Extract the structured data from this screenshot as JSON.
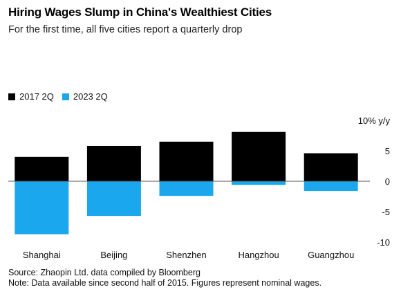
{
  "title": "Hiring Wages Slump in China's Wealthiest Cities",
  "subtitle": "For the first time, all five cities report a quarterly drop",
  "source": "Source: Zhaopin Ltd. data compiled by Bloomberg",
  "note": "Note: Data available since second half of 2015. Figures represent nominal wages.",
  "chart_data": {
    "type": "bar",
    "categories": [
      "Shanghai",
      "Beijing",
      "Shenzhen",
      "Hangzhou",
      "Guangzhou"
    ],
    "series": [
      {
        "name": "2017 2Q",
        "color": "#000000",
        "values": [
          4.0,
          5.8,
          6.5,
          8.1,
          4.6
        ]
      },
      {
        "name": "2023 2Q",
        "color": "#1aa7ee",
        "values": [
          -8.7,
          -5.7,
          -2.4,
          -0.6,
          -1.6
        ]
      }
    ],
    "ylim": [
      -10,
      10
    ],
    "yticks": [
      {
        "value": 10,
        "label": "10% y/y"
      },
      {
        "value": 5,
        "label": "5"
      },
      {
        "value": 0,
        "label": "0"
      },
      {
        "value": -5,
        "label": "-5"
      },
      {
        "value": -10,
        "label": "-10"
      }
    ],
    "legend_position": "top-left",
    "grid": false
  }
}
